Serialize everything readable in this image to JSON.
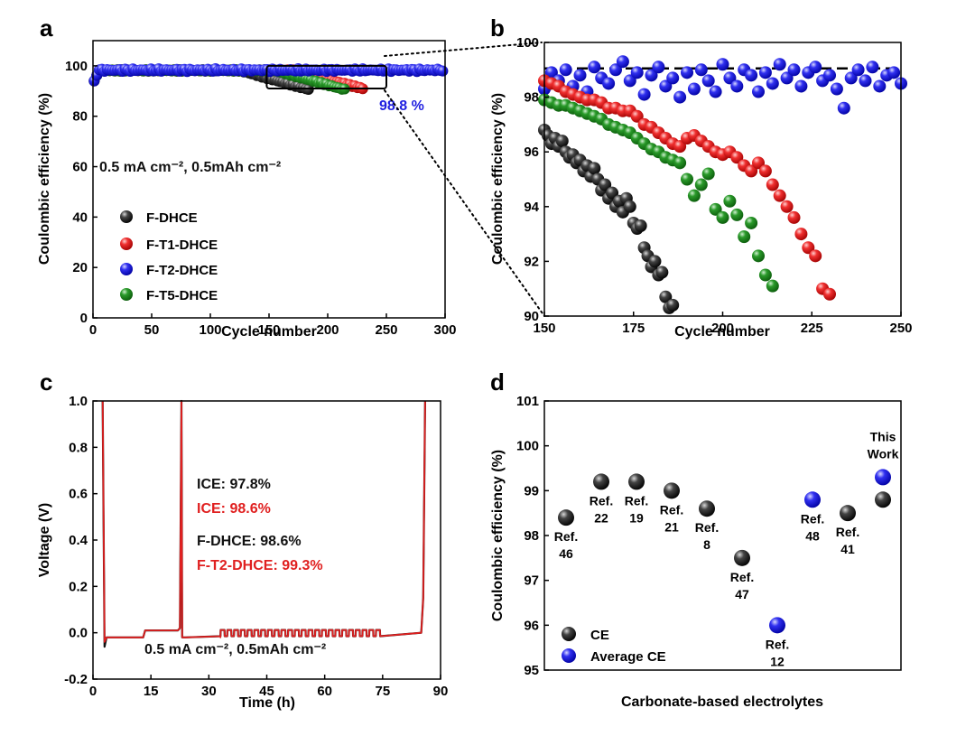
{
  "panels": {
    "a": {
      "label": "a"
    },
    "b": {
      "label": "b"
    },
    "c": {
      "label": "c"
    },
    "d": {
      "label": "d"
    }
  },
  "chart_data": [
    {
      "id": "a",
      "type": "scatter",
      "xlabel": "Cycle number",
      "ylabel": "Coulombic efficiency (%)",
      "xlim": [
        0,
        300
      ],
      "ylim": [
        0,
        110
      ],
      "xticks": [
        "0",
        "50",
        "100",
        "150",
        "200",
        "250",
        "300"
      ],
      "yticks": [
        "0",
        "20",
        "40",
        "60",
        "80",
        "100"
      ],
      "annotation": "0.5 mA cm⁻²,  0.5mAh cm⁻²",
      "value_label": "98.8 %",
      "value_label_color": "#1f1fe0",
      "legend_position": "lower-left",
      "inset_box": {
        "x": [
          148,
          250
        ],
        "y": [
          91,
          100
        ]
      },
      "series": [
        {
          "name": "F-DHCE",
          "color": "#111111",
          "end_cycle": 185,
          "end_ce": 90.5
        },
        {
          "name": "F-T1-DHCE",
          "color": "#e02020",
          "end_cycle": 230,
          "end_ce": 91.0
        },
        {
          "name": "F-T2-DHCE",
          "color": "#1f1fe0",
          "end_cycle": 300,
          "end_ce": 98.5
        },
        {
          "name": "F-T5-DHCE",
          "color": "#1f8a1f",
          "end_cycle": 215,
          "end_ce": 90.5
        }
      ]
    },
    {
      "id": "b",
      "type": "scatter",
      "xlabel": "Cycle number",
      "ylabel": "Coulombic efficiency (%)",
      "xlim": [
        150,
        250
      ],
      "ylim": [
        90,
        100
      ],
      "xticks": [
        "150",
        "175",
        "200",
        "225",
        "250"
      ],
      "yticks": [
        "90",
        "92",
        "94",
        "96",
        "98",
        "100"
      ],
      "reference_line": 99.05,
      "series": [
        {
          "name": "F-DHCE",
          "color": "#111111",
          "x": [
            150,
            151,
            152,
            153,
            154,
            155,
            156,
            157,
            158,
            159,
            160,
            161,
            162,
            163,
            164,
            165,
            166,
            167,
            168,
            169,
            170,
            171,
            172,
            173,
            174,
            175,
            176,
            177,
            178,
            179,
            180,
            181,
            182,
            183,
            184,
            185,
            186
          ],
          "y": [
            96.8,
            96.6,
            96.3,
            96.5,
            96.2,
            96.4,
            96.0,
            95.8,
            95.9,
            95.6,
            95.7,
            95.3,
            95.5,
            95.1,
            95.4,
            95.0,
            94.6,
            94.8,
            94.3,
            94.5,
            94.0,
            94.2,
            93.8,
            94.3,
            94.0,
            93.4,
            93.2,
            93.3,
            92.5,
            92.2,
            91.8,
            92.0,
            91.5,
            91.6,
            90.7,
            90.3,
            90.4
          ]
        },
        {
          "name": "F-T1-DHCE",
          "color": "#e02020",
          "x": [
            150,
            152,
            154,
            156,
            158,
            160,
            162,
            164,
            166,
            168,
            170,
            172,
            174,
            176,
            178,
            180,
            182,
            184,
            186,
            188,
            190,
            192,
            194,
            196,
            198,
            200,
            202,
            204,
            206,
            208,
            210,
            212,
            214,
            216,
            218,
            220,
            222,
            224,
            226,
            228,
            230
          ],
          "y": [
            98.6,
            98.5,
            98.4,
            98.2,
            98.1,
            98.0,
            97.9,
            97.9,
            97.8,
            97.6,
            97.6,
            97.5,
            97.5,
            97.3,
            97.0,
            96.9,
            96.7,
            96.5,
            96.3,
            96.2,
            96.5,
            96.6,
            96.4,
            96.2,
            96.0,
            95.9,
            96.0,
            95.8,
            95.5,
            95.3,
            95.6,
            95.3,
            94.8,
            94.4,
            94.0,
            93.6,
            93.0,
            92.5,
            92.2,
            91.0,
            90.8
          ]
        },
        {
          "name": "F-T2-DHCE",
          "color": "#1f1fe0",
          "x": [
            150,
            152,
            154,
            156,
            158,
            160,
            162,
            164,
            166,
            168,
            170,
            172,
            174,
            176,
            178,
            180,
            182,
            184,
            186,
            188,
            190,
            192,
            194,
            196,
            198,
            200,
            202,
            204,
            206,
            208,
            210,
            212,
            214,
            216,
            218,
            220,
            222,
            224,
            226,
            228,
            230,
            232,
            234,
            236,
            238,
            240,
            242,
            244,
            246,
            248,
            250
          ],
          "y": [
            98.3,
            98.9,
            98.6,
            99.0,
            98.4,
            98.8,
            98.2,
            99.1,
            98.7,
            98.5,
            99.0,
            99.3,
            98.6,
            98.9,
            98.1,
            98.8,
            99.1,
            98.4,
            98.7,
            98.0,
            98.9,
            98.3,
            99.0,
            98.6,
            98.2,
            99.2,
            98.7,
            98.4,
            99.0,
            98.8,
            98.2,
            98.9,
            98.5,
            99.2,
            98.7,
            99.0,
            98.4,
            98.9,
            99.1,
            98.6,
            98.8,
            98.3,
            97.6,
            98.7,
            99.0,
            98.6,
            99.1,
            98.4,
            98.8,
            98.9,
            98.5
          ]
        },
        {
          "name": "F-T5-DHCE",
          "color": "#1f8a1f",
          "x": [
            150,
            152,
            154,
            156,
            158,
            160,
            162,
            164,
            166,
            168,
            170,
            172,
            174,
            176,
            178,
            180,
            182,
            184,
            186,
            188,
            190,
            192,
            194,
            196,
            198,
            200,
            202,
            204,
            206,
            208,
            210,
            212,
            214
          ],
          "y": [
            97.9,
            97.8,
            97.7,
            97.7,
            97.6,
            97.5,
            97.4,
            97.3,
            97.2,
            97.0,
            96.9,
            96.8,
            96.7,
            96.5,
            96.3,
            96.1,
            96.0,
            95.8,
            95.7,
            95.6,
            95.0,
            94.4,
            94.8,
            95.2,
            93.9,
            93.6,
            94.2,
            93.7,
            92.9,
            93.4,
            92.2,
            91.5,
            91.1
          ]
        }
      ]
    },
    {
      "id": "c",
      "type": "line",
      "xlabel": "Time (h)",
      "ylabel": "Voltage (V)",
      "xlim": [
        0,
        90
      ],
      "ylim": [
        -0.2,
        1.0
      ],
      "xticks": [
        "0",
        "15",
        "30",
        "45",
        "60",
        "75",
        "90"
      ],
      "yticks": [
        "-0.2",
        "0.0",
        "0.2",
        "0.4",
        "0.6",
        "0.8",
        "1.0"
      ],
      "annotation": "0.5 mA cm⁻²,  0.5mAh cm⁻²",
      "text_lines": [
        {
          "text": "ICE: 97.8%",
          "color": "#111111"
        },
        {
          "text": "ICE: 98.6%",
          "color": "#e02020"
        },
        {
          "text": "F-DHCE: 98.6%",
          "color": "#111111"
        },
        {
          "text": "F-T2-DHCE: 99.3%",
          "color": "#e02020"
        }
      ],
      "series": [
        {
          "color": "#111111",
          "x": [
            2.5,
            3.0,
            3.5,
            13.0,
            13.5,
            22.0,
            22.5,
            22.9,
            23.0,
            23.1,
            24.0,
            85.0,
            85.5,
            86.0
          ],
          "y": [
            1.0,
            -0.06,
            -0.02,
            -0.02,
            0.01,
            0.01,
            0.02,
            1.0,
            0.5,
            -0.02,
            -0.02,
            0.0,
            0.15,
            1.0
          ]
        },
        {
          "color": "#e02020",
          "x": [
            2.5,
            3.0,
            3.5,
            13.0,
            13.5,
            22.0,
            22.5,
            22.9,
            23.0,
            23.1,
            24.0,
            33.0,
            85.0,
            85.5,
            86.0
          ],
          "y": [
            1.0,
            -0.04,
            -0.02,
            -0.02,
            0.01,
            0.01,
            0.02,
            1.0,
            0.5,
            -0.02,
            -0.02,
            -0.02,
            0.0,
            0.15,
            1.0
          ]
        }
      ],
      "cycling_window": [
        33,
        75
      ],
      "cycling_high": 0.012,
      "cycling_low": -0.015,
      "cycling_count": 24
    },
    {
      "id": "d",
      "type": "scatter",
      "xlabel": "Carbonate-based electrolytes",
      "ylabel": "Coulombic efficiency (%)",
      "ylim": [
        95,
        101
      ],
      "yticks": [
        "95",
        "96",
        "97",
        "98",
        "99",
        "100",
        "101"
      ],
      "legend_position": "lower-left",
      "series": [
        {
          "name": "CE",
          "color": "#111111"
        },
        {
          "name": "Average CE",
          "color": "#1f1fe0"
        }
      ],
      "points": [
        {
          "ref": [
            "Ref.",
            "46"
          ],
          "value": 98.4,
          "kind": "CE"
        },
        {
          "ref": [
            "Ref.",
            "22"
          ],
          "value": 99.2,
          "kind": "CE"
        },
        {
          "ref": [
            "Ref.",
            "19"
          ],
          "value": 99.2,
          "kind": "CE"
        },
        {
          "ref": [
            "Ref.",
            "21"
          ],
          "value": 99.0,
          "kind": "CE"
        },
        {
          "ref": [
            "Ref.",
            "8"
          ],
          "value": 98.6,
          "kind": "CE"
        },
        {
          "ref": [
            "Ref.",
            "47"
          ],
          "value": 97.5,
          "kind": "CE"
        },
        {
          "ref": [
            "Ref.",
            "12"
          ],
          "value": 96.0,
          "kind": "Average CE"
        },
        {
          "ref": [
            "Ref.",
            "48"
          ],
          "value": 98.8,
          "kind": "Average CE"
        },
        {
          "ref": [
            "Ref.",
            "41"
          ],
          "value": 98.5,
          "kind": "CE"
        },
        {
          "ref": [
            "This",
            "Work"
          ],
          "value": 98.8,
          "kind": "CE",
          "avg": 99.3,
          "highlight_color": "#e02020"
        }
      ]
    }
  ]
}
